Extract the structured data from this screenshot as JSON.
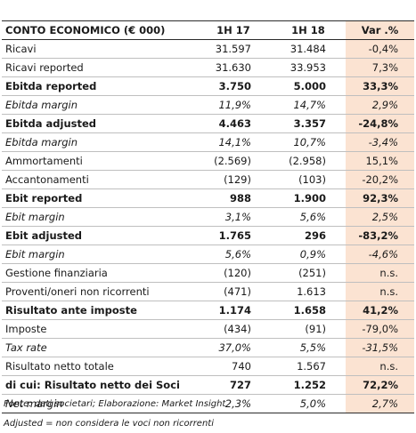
{
  "table": {
    "headers": [
      "CONTO ECONOMICO (€ 000)",
      "1H 17",
      "1H 18",
      "Var .%"
    ],
    "rows": [
      {
        "label": "Ricavi",
        "a": "31.597",
        "b": "31.484",
        "var": "-0,4%",
        "style": "normal"
      },
      {
        "label": "Ricavi reported",
        "a": "31.630",
        "b": "33.953",
        "var": "7,3%",
        "style": "normal"
      },
      {
        "label": "Ebitda reported",
        "a": "3.750",
        "b": "5.000",
        "var": "33,3%",
        "style": "bold"
      },
      {
        "label": "Ebitda margin",
        "a": "11,9%",
        "b": "14,7%",
        "var": "2,9%",
        "style": "italic"
      },
      {
        "label": "Ebitda adjusted",
        "a": "4.463",
        "b": "3.357",
        "var": "-24,8%",
        "style": "bold"
      },
      {
        "label": "Ebitda margin",
        "a": "14,1%",
        "b": "10,7%",
        "var": "-3,4%",
        "style": "italic"
      },
      {
        "label": "Ammortamenti",
        "a": "(2.569)",
        "b": "(2.958)",
        "var": "15,1%",
        "style": "normal"
      },
      {
        "label": "Accantonamenti",
        "a": "(129)",
        "b": "(103)",
        "var": "-20,2%",
        "style": "normal"
      },
      {
        "label": "Ebit reported",
        "a": "988",
        "b": "1.900",
        "var": "92,3%",
        "style": "bold"
      },
      {
        "label": "Ebit margin",
        "a": "3,1%",
        "b": "5,6%",
        "var": "2,5%",
        "style": "italic"
      },
      {
        "label": "Ebit adjusted",
        "a": "1.765",
        "b": "296",
        "var": "-83,2%",
        "style": "bold"
      },
      {
        "label": "Ebit margin",
        "a": "5,6%",
        "b": "0,9%",
        "var": "-4,6%",
        "style": "italic"
      },
      {
        "label": "Gestione finanziaria",
        "a": "(120)",
        "b": "(251)",
        "var": "n.s.",
        "style": "normal"
      },
      {
        "label": "Proventi/oneri non ricorrenti",
        "a": "(471)",
        "b": "1.613",
        "var": "n.s.",
        "style": "normal"
      },
      {
        "label": "Risultato ante imposte",
        "a": "1.174",
        "b": "1.658",
        "var": "41,2%",
        "style": "bold"
      },
      {
        "label": "Imposte",
        "a": "(434)",
        "b": "(91)",
        "var": "-79,0%",
        "style": "normal"
      },
      {
        "label": "Tax rate",
        "a": "37,0%",
        "b": "5,5%",
        "var": "-31,5%",
        "style": "italic"
      },
      {
        "label": "Risultato netto totale",
        "a": "740",
        "b": "1.567",
        "var": "n.s.",
        "style": "normal"
      },
      {
        "label": "di cui: Risultato netto dei Soci",
        "a": "727",
        "b": "1.252",
        "var": "72,2%",
        "style": "bold"
      },
      {
        "label": "Net margin",
        "a": "2,3%",
        "b": "5,0%",
        "var": "2,7%",
        "style": "italic"
      }
    ]
  },
  "notes": {
    "source": "Fonte: dati societari; Elaborazione: Market Insight",
    "adjusted": "Adjusted = non considera le voci non ricorrenti"
  }
}
